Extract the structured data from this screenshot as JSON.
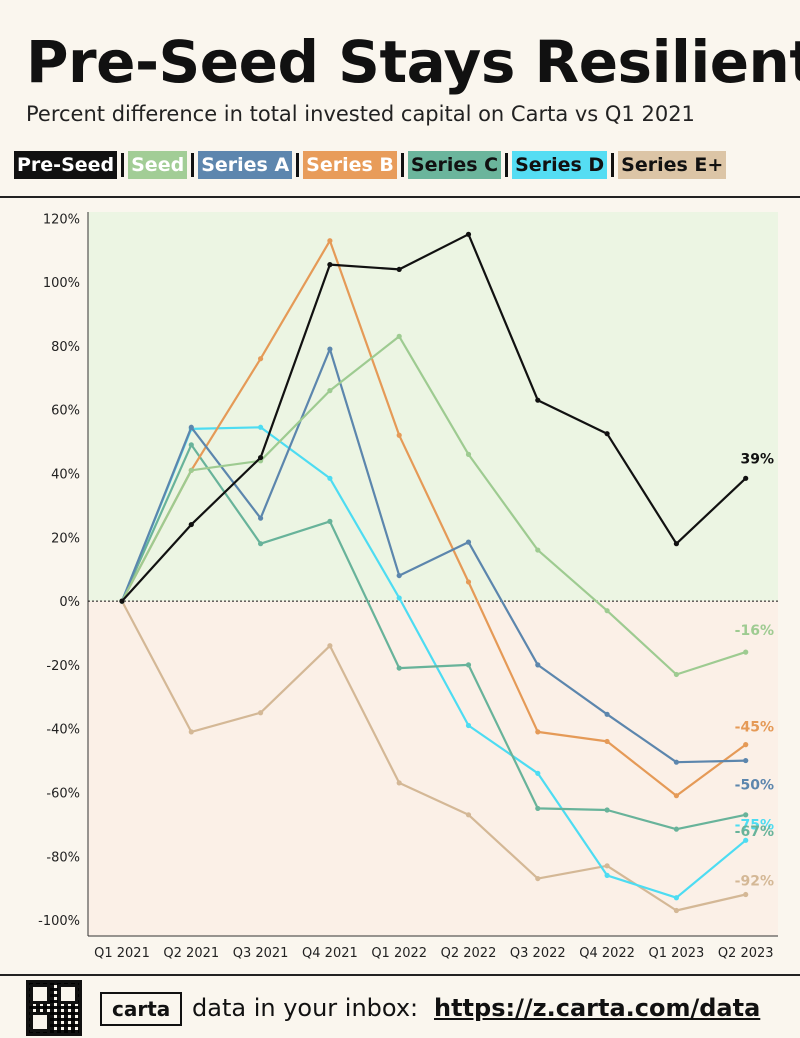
{
  "header": {
    "title": "Pre-Seed Stays Resilient",
    "subtitle": "Percent difference in total invested capital on Carta vs Q1 2021"
  },
  "chart_data": {
    "type": "line",
    "x": [
      "Q1 2021",
      "Q2 2021",
      "Q3 2021",
      "Q4 2021",
      "Q1 2022",
      "Q2 2022",
      "Q3 2022",
      "Q4 2022",
      "Q1 2023",
      "Q2 2023"
    ],
    "ylim": [
      -105,
      122
    ],
    "yticks": [
      120,
      100,
      80,
      60,
      40,
      20,
      0,
      -20,
      -40,
      -60,
      -80,
      -100
    ],
    "ytick_labels": [
      "120%",
      "100%",
      "80%",
      "60%",
      "40%",
      "20%",
      "0%",
      "-20%",
      "-40%",
      "-60%",
      "-80%",
      "-100%"
    ],
    "positive_bg": "#ecf5e3",
    "negative_bg": "#fbf0e7",
    "series": [
      {
        "name": "Series E+",
        "color": "#d4b896",
        "legend_bg": "#dcc5a6",
        "legend_fg": "#111111",
        "values": [
          0,
          -41,
          -35,
          -14,
          -57,
          -67,
          -87,
          -83,
          -97,
          -92
        ],
        "end_label": "-92%"
      },
      {
        "name": "Series D",
        "color": "#4ddcf2",
        "legend_bg": "#55ddf3",
        "legend_fg": "#111111",
        "values": [
          0,
          54,
          54.5,
          38.5,
          1,
          -39,
          -54,
          -86,
          -93,
          -75
        ],
        "end_label": "-75%"
      },
      {
        "name": "Series C",
        "color": "#68b39a",
        "legend_bg": "#6bb59c",
        "legend_fg": "#111111",
        "values": [
          0,
          49,
          18,
          25,
          -21,
          -20,
          -65,
          -65.5,
          -71.5,
          -67
        ],
        "end_label": "-67%"
      },
      {
        "name": "Series B",
        "color": "#e59a57",
        "legend_bg": "#e89c5a",
        "legend_fg": "#ffffff",
        "values": [
          0,
          41,
          76,
          113,
          52,
          6,
          -41,
          -44,
          -61,
          -45
        ],
        "end_label": "-45%"
      },
      {
        "name": "Series A",
        "color": "#5c86ad",
        "legend_bg": "#5d86ae",
        "legend_fg": "#ffffff",
        "values": [
          0,
          54.5,
          26,
          79,
          8,
          18.5,
          -20,
          -35.5,
          -50.5,
          -50
        ],
        "end_label": "-50%"
      },
      {
        "name": "Seed",
        "color": "#9ecb91",
        "legend_bg": "#a2cd96",
        "legend_fg": "#ffffff",
        "values": [
          0,
          41,
          44,
          66,
          83,
          46,
          16,
          -3,
          -23,
          -16
        ],
        "end_label": "-16%"
      },
      {
        "name": "Pre-Seed",
        "color": "#111111",
        "legend_bg": "#111111",
        "legend_fg": "#ffffff",
        "values": [
          0,
          24,
          45,
          105.5,
          104,
          115,
          63,
          52.5,
          18,
          38.5
        ],
        "end_label": "39%"
      }
    ],
    "legend_order": [
      "Pre-Seed",
      "Seed",
      "Series A",
      "Series B",
      "Series C",
      "Series D",
      "Series E+"
    ]
  },
  "footer": {
    "brand": "carta",
    "text": "data in your inbox:",
    "link": "https://z.carta.com/data"
  }
}
